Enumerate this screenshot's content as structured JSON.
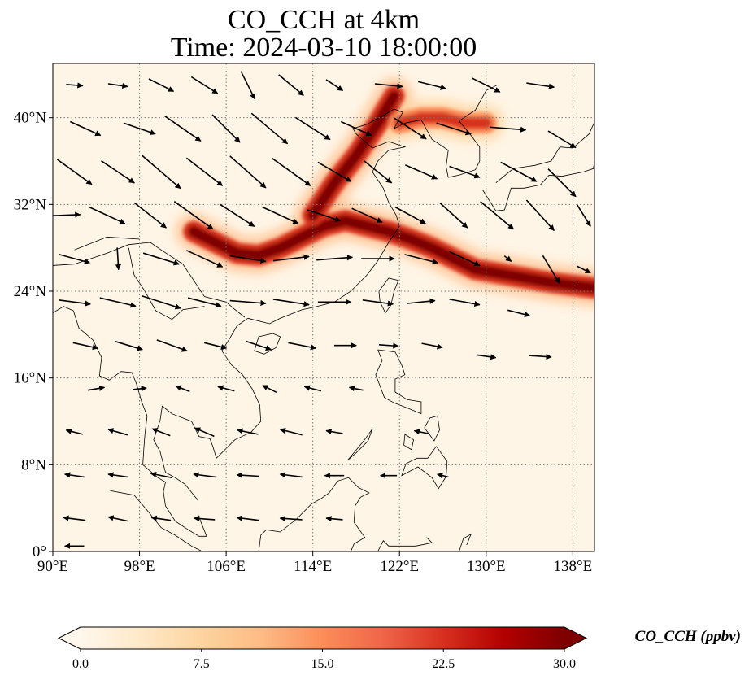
{
  "title": {
    "line1": "CO_CCH at 4km",
    "line2": "Time: 2024-03-10 18:00:00"
  },
  "map": {
    "extent": {
      "lon": [
        90,
        140
      ],
      "lat": [
        0,
        45
      ]
    },
    "x_ticks": [
      {
        "value": 90,
        "label": "90°E"
      },
      {
        "value": 98,
        "label": "98°E"
      },
      {
        "value": 106,
        "label": "106°E"
      },
      {
        "value": 114,
        "label": "114°E"
      },
      {
        "value": 122,
        "label": "122°E"
      },
      {
        "value": 130,
        "label": "130°E"
      },
      {
        "value": 138,
        "label": "138°E"
      }
    ],
    "y_ticks": [
      {
        "value": 0,
        "label": "0°"
      },
      {
        "value": 8,
        "label": "8°N"
      },
      {
        "value": 16,
        "label": "16°N"
      },
      {
        "value": 24,
        "label": "24°N"
      },
      {
        "value": 32,
        "label": "32°N"
      },
      {
        "value": 40,
        "label": "40°N"
      }
    ],
    "gridlines": true,
    "field_colormap": "OrRd",
    "background_color": "#fff5e6",
    "plumes": [
      {
        "name": "main-plume",
        "lon": [
          103,
          105,
          107,
          109,
          111,
          113,
          115,
          117,
          119,
          121,
          123,
          125,
          127,
          129,
          132,
          136,
          140
        ],
        "lat": [
          29.5,
          28.5,
          27.5,
          27.3,
          28,
          29,
          30,
          30.5,
          30,
          29.5,
          28.8,
          28,
          27,
          26,
          25.5,
          24.8,
          24.3
        ],
        "value": 30
      },
      {
        "name": "north-plume",
        "lon": [
          114,
          116,
          118,
          120,
          121.5
        ],
        "lat": [
          31,
          34,
          36.5,
          39.5,
          42
        ],
        "value": 30
      },
      {
        "name": "korea-plume",
        "lon": [
          122,
          124,
          126,
          128,
          130
        ],
        "lat": [
          39.5,
          40,
          40,
          39.5,
          39.5
        ],
        "value": 22
      }
    ],
    "coastline_color": "#000000"
  },
  "wind_vectors": [
    {
      "lon": 92,
      "lat": 43,
      "u": 1.2,
      "v": -0.1
    },
    {
      "lon": 96,
      "lat": 43,
      "u": 1.4,
      "v": -0.2
    },
    {
      "lon": 100,
      "lat": 43,
      "u": 1.8,
      "v": -0.9
    },
    {
      "lon": 104,
      "lat": 43,
      "u": 1.9,
      "v": -1.2
    },
    {
      "lon": 108,
      "lat": 43,
      "u": 1.0,
      "v": -2.0
    },
    {
      "lon": 112,
      "lat": 43,
      "u": 1.8,
      "v": -1.5
    },
    {
      "lon": 116,
      "lat": 43,
      "u": 1.2,
      "v": -0.8
    },
    {
      "lon": 121,
      "lat": 43,
      "u": 2.0,
      "v": -0.2
    },
    {
      "lon": 125,
      "lat": 43,
      "u": 2.0,
      "v": -0.5
    },
    {
      "lon": 130,
      "lat": 43,
      "u": 2.0,
      "v": -1.0
    },
    {
      "lon": 135,
      "lat": 43,
      "u": 2.0,
      "v": -0.3
    },
    {
      "lon": 93,
      "lat": 39,
      "u": 2.2,
      "v": -1.0
    },
    {
      "lon": 98,
      "lat": 39,
      "u": 2.3,
      "v": -0.8
    },
    {
      "lon": 102,
      "lat": 39,
      "u": 2.6,
      "v": -1.8
    },
    {
      "lon": 106,
      "lat": 39,
      "u": 2.0,
      "v": -2.0
    },
    {
      "lon": 110,
      "lat": 39,
      "u": 2.6,
      "v": -2.2
    },
    {
      "lon": 114,
      "lat": 39,
      "u": 2.5,
      "v": -1.6
    },
    {
      "lon": 118,
      "lat": 39,
      "u": 2.2,
      "v": -1.0
    },
    {
      "lon": 123,
      "lat": 39,
      "u": 2.3,
      "v": -1.5
    },
    {
      "lon": 127,
      "lat": 39,
      "u": 2.5,
      "v": -0.8
    },
    {
      "lon": 132,
      "lat": 39,
      "u": 2.6,
      "v": -0.2
    },
    {
      "lon": 137,
      "lat": 38,
      "u": 2.0,
      "v": -1.2
    },
    {
      "lon": 92,
      "lat": 35,
      "u": 2.5,
      "v": -1.8
    },
    {
      "lon": 96,
      "lat": 35,
      "u": 2.4,
      "v": -1.6
    },
    {
      "lon": 100,
      "lat": 35,
      "u": 2.8,
      "v": -2.4
    },
    {
      "lon": 104,
      "lat": 35,
      "u": 2.6,
      "v": -2.0
    },
    {
      "lon": 108,
      "lat": 35,
      "u": 2.6,
      "v": -2.3
    },
    {
      "lon": 112,
      "lat": 35,
      "u": 2.8,
      "v": -2.0
    },
    {
      "lon": 116,
      "lat": 35,
      "u": 2.4,
      "v": -1.4
    },
    {
      "lon": 120,
      "lat": 35,
      "u": 2.0,
      "v": -1.6
    },
    {
      "lon": 124,
      "lat": 35,
      "u": 2.3,
      "v": -1.0
    },
    {
      "lon": 128,
      "lat": 35,
      "u": 2.2,
      "v": -0.8
    },
    {
      "lon": 133,
      "lat": 35,
      "u": 2.6,
      "v": -1.4
    },
    {
      "lon": 137,
      "lat": 34,
      "u": 2.0,
      "v": -2.0
    },
    {
      "lon": 91,
      "lat": 31,
      "u": 2.4,
      "v": 0.1
    },
    {
      "lon": 95,
      "lat": 31,
      "u": 2.6,
      "v": -1.2
    },
    {
      "lon": 99,
      "lat": 31,
      "u": 2.3,
      "v": -1.8
    },
    {
      "lon": 103,
      "lat": 31,
      "u": 2.8,
      "v": -2.0
    },
    {
      "lon": 107,
      "lat": 31,
      "u": 2.5,
      "v": -1.6
    },
    {
      "lon": 111,
      "lat": 31,
      "u": 2.6,
      "v": -1.2
    },
    {
      "lon": 115,
      "lat": 31,
      "u": 2.4,
      "v": -0.8
    },
    {
      "lon": 119,
      "lat": 31,
      "u": 2.2,
      "v": -1.0
    },
    {
      "lon": 123,
      "lat": 31,
      "u": 2.2,
      "v": -1.2
    },
    {
      "lon": 127,
      "lat": 31,
      "u": 2.0,
      "v": -1.8
    },
    {
      "lon": 131,
      "lat": 31,
      "u": 2.4,
      "v": -2.0
    },
    {
      "lon": 135,
      "lat": 31,
      "u": 2.0,
      "v": -2.2
    },
    {
      "lon": 139,
      "lat": 31,
      "u": 1.0,
      "v": -1.6
    },
    {
      "lon": 92,
      "lat": 27,
      "u": 2.2,
      "v": -0.6
    },
    {
      "lon": 96,
      "lat": 27,
      "u": 0.1,
      "v": -1.6
    },
    {
      "lon": 100,
      "lat": 27,
      "u": 2.6,
      "v": -0.8
    },
    {
      "lon": 104,
      "lat": 27,
      "u": 2.6,
      "v": -1.2
    },
    {
      "lon": 108,
      "lat": 27,
      "u": 2.6,
      "v": -0.4
    },
    {
      "lon": 112,
      "lat": 27,
      "u": 2.6,
      "v": 0.3
    },
    {
      "lon": 116,
      "lat": 27,
      "u": 2.6,
      "v": 0.2
    },
    {
      "lon": 120,
      "lat": 27,
      "u": 2.4,
      "v": 0.0
    },
    {
      "lon": 124,
      "lat": 27,
      "u": 2.4,
      "v": -0.6
    },
    {
      "lon": 128,
      "lat": 27,
      "u": 2.2,
      "v": -1.0
    },
    {
      "lon": 132,
      "lat": 27,
      "u": 0.5,
      "v": -0.4
    },
    {
      "lon": 136,
      "lat": 26,
      "u": 1.2,
      "v": -2.0
    },
    {
      "lon": 139,
      "lat": 26,
      "u": 1.0,
      "v": -0.5
    },
    {
      "lon": 92,
      "lat": 23,
      "u": 2.3,
      "v": -0.3
    },
    {
      "lon": 96,
      "lat": 23,
      "u": 2.6,
      "v": -0.6
    },
    {
      "lon": 100,
      "lat": 23,
      "u": 2.8,
      "v": -0.9
    },
    {
      "lon": 104,
      "lat": 23,
      "u": 2.4,
      "v": -0.6
    },
    {
      "lon": 108,
      "lat": 23,
      "u": 2.6,
      "v": -0.2
    },
    {
      "lon": 112,
      "lat": 23,
      "u": 2.6,
      "v": -0.4
    },
    {
      "lon": 116,
      "lat": 23,
      "u": 2.4,
      "v": 0.0
    },
    {
      "lon": 120,
      "lat": 23,
      "u": 2.2,
      "v": -0.3
    },
    {
      "lon": 124,
      "lat": 23,
      "u": 2.0,
      "v": 0.2
    },
    {
      "lon": 128,
      "lat": 23,
      "u": 2.2,
      "v": -0.4
    },
    {
      "lon": 133,
      "lat": 22,
      "u": 1.6,
      "v": -0.4
    },
    {
      "lon": 93,
      "lat": 19,
      "u": 1.8,
      "v": -0.4
    },
    {
      "lon": 97,
      "lat": 19,
      "u": 2.0,
      "v": -0.6
    },
    {
      "lon": 101,
      "lat": 19,
      "u": 2.2,
      "v": -0.8
    },
    {
      "lon": 105,
      "lat": 19,
      "u": 1.6,
      "v": -0.4
    },
    {
      "lon": 109,
      "lat": 19,
      "u": 1.8,
      "v": -0.6
    },
    {
      "lon": 113,
      "lat": 19,
      "u": 2.0,
      "v": -0.4
    },
    {
      "lon": 117,
      "lat": 19,
      "u": 1.6,
      "v": 0.0
    },
    {
      "lon": 121,
      "lat": 19,
      "u": 1.4,
      "v": -0.1
    },
    {
      "lon": 125,
      "lat": 19,
      "u": 1.5,
      "v": -0.3
    },
    {
      "lon": 130,
      "lat": 18,
      "u": 1.4,
      "v": -0.2
    },
    {
      "lon": 135,
      "lat": 18,
      "u": 1.6,
      "v": -0.1
    },
    {
      "lon": 94,
      "lat": 15,
      "u": 1.2,
      "v": 0.2
    },
    {
      "lon": 98,
      "lat": 15,
      "u": 1.0,
      "v": 0.1
    },
    {
      "lon": 102,
      "lat": 15,
      "u": -1.0,
      "v": 0.4
    },
    {
      "lon": 106,
      "lat": 15,
      "u": -1.2,
      "v": 0.3
    },
    {
      "lon": 110,
      "lat": 15,
      "u": -1.0,
      "v": 0.5
    },
    {
      "lon": 114,
      "lat": 15,
      "u": -1.2,
      "v": 0.3
    },
    {
      "lon": 118,
      "lat": 15,
      "u": -1.0,
      "v": 0.2
    },
    {
      "lon": 92,
      "lat": 11,
      "u": -1.2,
      "v": 0.3
    },
    {
      "lon": 96,
      "lat": 11,
      "u": -1.4,
      "v": 0.4
    },
    {
      "lon": 100,
      "lat": 11,
      "u": -1.3,
      "v": 0.5
    },
    {
      "lon": 104,
      "lat": 11,
      "u": -1.4,
      "v": 0.6
    },
    {
      "lon": 108,
      "lat": 11,
      "u": -1.5,
      "v": 0.3
    },
    {
      "lon": 112,
      "lat": 11,
      "u": -1.6,
      "v": 0.4
    },
    {
      "lon": 116,
      "lat": 11,
      "u": -1.2,
      "v": 0.2
    },
    {
      "lon": 124,
      "lat": 11,
      "u": -1.0,
      "v": 0.2
    },
    {
      "lon": 92,
      "lat": 7,
      "u": -1.4,
      "v": 0.2
    },
    {
      "lon": 96,
      "lat": 7,
      "u": -1.4,
      "v": 0.2
    },
    {
      "lon": 100,
      "lat": 7,
      "u": -1.5,
      "v": 0.3
    },
    {
      "lon": 104,
      "lat": 7,
      "u": -1.6,
      "v": 0.2
    },
    {
      "lon": 108,
      "lat": 7,
      "u": -1.6,
      "v": 0.1
    },
    {
      "lon": 112,
      "lat": 7,
      "u": -1.6,
      "v": 0.2
    },
    {
      "lon": 116,
      "lat": 7,
      "u": -1.4,
      "v": 0.0
    },
    {
      "lon": 121,
      "lat": 7,
      "u": -1.2,
      "v": 0.0
    },
    {
      "lon": 126,
      "lat": 7,
      "u": -0.8,
      "v": 0.2
    },
    {
      "lon": 92,
      "lat": 3,
      "u": -1.6,
      "v": 0.2
    },
    {
      "lon": 96,
      "lat": 3,
      "u": -1.4,
      "v": 0.3
    },
    {
      "lon": 100,
      "lat": 3,
      "u": -1.4,
      "v": 0.2
    },
    {
      "lon": 104,
      "lat": 3,
      "u": -1.5,
      "v": 0.1
    },
    {
      "lon": 108,
      "lat": 3,
      "u": -1.6,
      "v": 0.2
    },
    {
      "lon": 112,
      "lat": 3,
      "u": -1.6,
      "v": 0.1
    },
    {
      "lon": 116,
      "lat": 3,
      "u": -1.2,
      "v": 0.1
    },
    {
      "lon": 92,
      "lat": 0.5,
      "u": -1.4,
      "v": 0.0
    }
  ],
  "colorbar": {
    "min": 0,
    "max": 30,
    "ticks": [
      {
        "value": 0,
        "label": "0.0"
      },
      {
        "value": 7.5,
        "label": "7.5"
      },
      {
        "value": 15,
        "label": "15.0"
      },
      {
        "value": 22.5,
        "label": "22.5"
      },
      {
        "value": 30,
        "label": "30.0"
      }
    ],
    "label": "CO_CCH (ppbv)",
    "extend": "both",
    "stops": [
      "#fff7ec",
      "#fee8c8",
      "#fdd49e",
      "#fdbb84",
      "#fc8d59",
      "#ef6548",
      "#d7301f",
      "#b30000",
      "#7f0000"
    ]
  }
}
